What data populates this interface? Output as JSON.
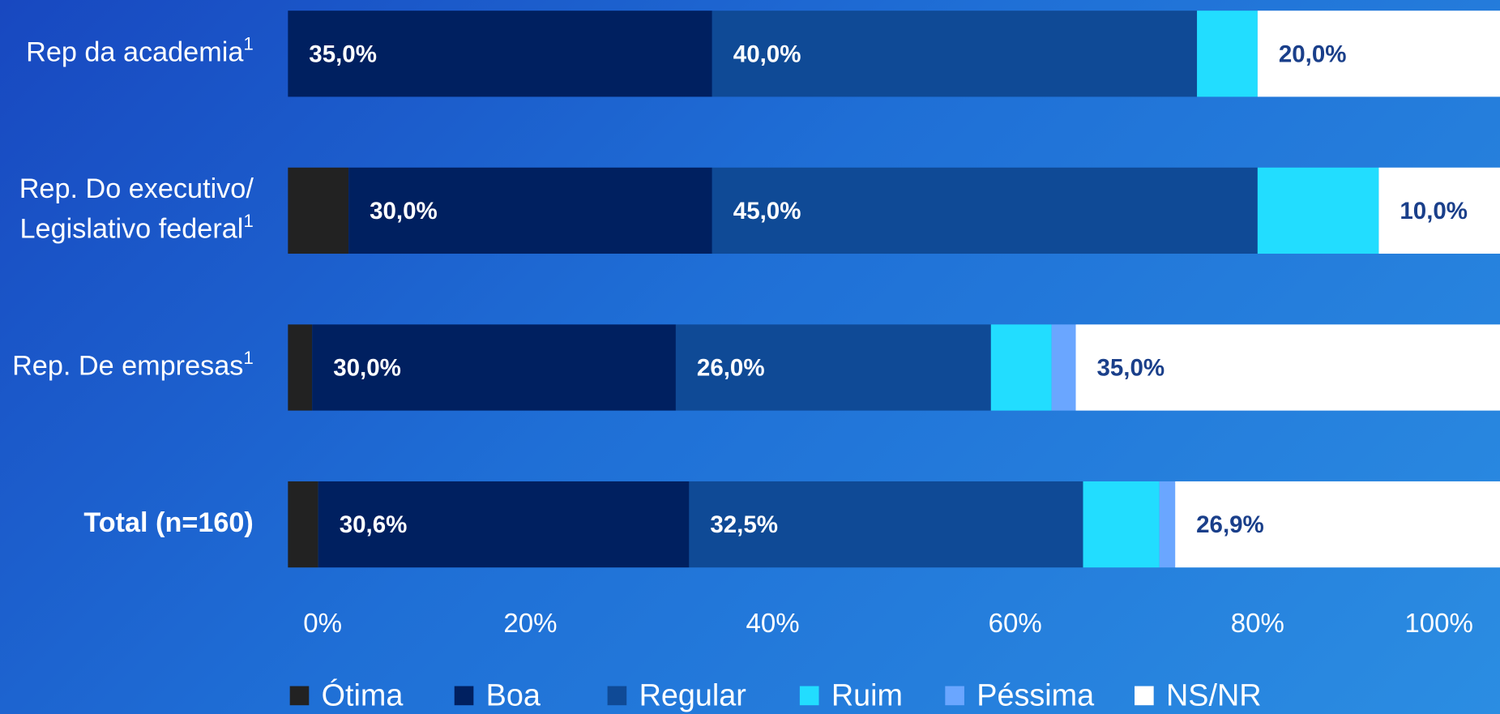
{
  "chart_data": {
    "type": "stacked-bar-horizontal",
    "categories": [
      [
        "Rep da academia"
      ],
      [
        "Rep. Do executivo/",
        "Legislativo federal"
      ],
      [
        "Rep. De empresas"
      ],
      [
        "Total (n=160)"
      ]
    ],
    "category_notes": [
      "1",
      "1",
      "1",
      null
    ],
    "series": [
      {
        "name": "Ótima",
        "color": "#222222",
        "values": [
          0,
          5,
          2,
          2.5
        ],
        "value_labels": [
          null,
          null,
          null,
          null
        ]
      },
      {
        "name": "Boa",
        "color": "#002060",
        "values": [
          35,
          30,
          30,
          30.6
        ],
        "value_labels": [
          "35,0%",
          "30,0%",
          "30,0%",
          "30,6%"
        ]
      },
      {
        "name": "Regular",
        "color": "#0f4a96",
        "values": [
          40,
          45,
          26,
          32.5
        ],
        "value_labels": [
          "40,0%",
          "45,0%",
          "26,0%",
          "32,5%"
        ]
      },
      {
        "name": "Ruim",
        "color": "#22ddff",
        "values": [
          5,
          10,
          5,
          6.3
        ],
        "value_labels": [
          null,
          null,
          null,
          null
        ]
      },
      {
        "name": "Péssima",
        "color": "#6aa6ff",
        "values": [
          0,
          0,
          2,
          1.3
        ],
        "value_labels": [
          null,
          null,
          null,
          null
        ]
      },
      {
        "name": "NS/NR",
        "color": "#ffffff",
        "values": [
          20,
          10,
          35,
          26.9
        ],
        "value_labels": [
          "20,0%",
          "10,0%",
          "35,0%",
          "26,9%"
        ]
      }
    ],
    "xlim": [
      0,
      100
    ],
    "xticks": [
      {
        "value": 0,
        "label": "0%"
      },
      {
        "value": 20,
        "label": "20%"
      },
      {
        "value": 40,
        "label": "40%"
      },
      {
        "value": 60,
        "label": "60%"
      },
      {
        "value": 80,
        "label": "80%"
      },
      {
        "value": 100,
        "label": "100%"
      }
    ]
  }
}
